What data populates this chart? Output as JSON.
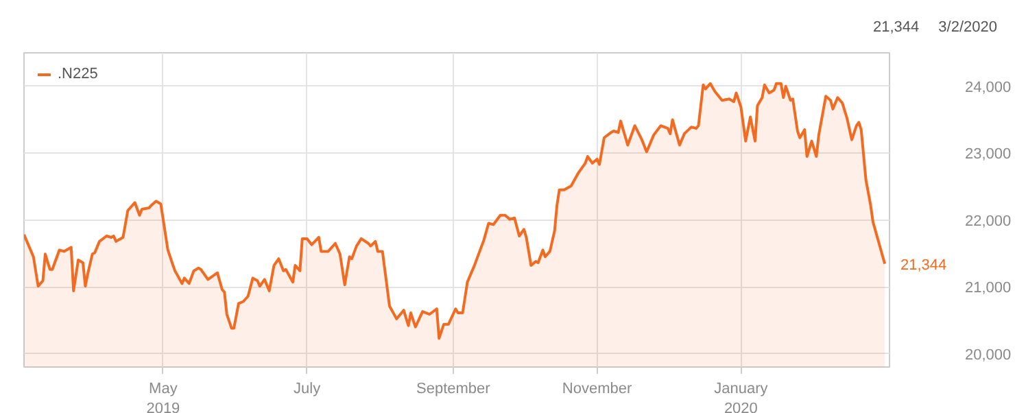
{
  "chart_data": {
    "type": "area",
    "x": [
      "2019-03-03",
      "2019-03-07",
      "2019-03-09",
      "2019-03-11",
      "2019-03-12",
      "2019-03-14",
      "2019-03-15",
      "2019-03-18",
      "2019-03-20",
      "2019-03-23",
      "2019-03-24",
      "2019-03-26",
      "2019-03-28",
      "2019-03-29",
      "2019-03-30",
      "2019-04-01",
      "2019-04-02",
      "2019-04-04",
      "2019-04-07",
      "2019-04-09",
      "2019-04-10",
      "2019-04-11",
      "2019-04-14",
      "2019-04-16",
      "2019-04-19",
      "2019-04-21",
      "2019-04-22",
      "2019-04-25",
      "2019-04-26",
      "2019-04-28",
      "2019-04-30",
      "2019-05-03",
      "2019-05-05",
      "2019-05-06",
      "2019-05-09",
      "2019-05-10",
      "2019-05-12",
      "2019-05-14",
      "2019-05-16",
      "2019-05-17",
      "2019-05-20",
      "2019-05-24",
      "2019-05-26",
      "2019-05-27",
      "2019-05-28",
      "2019-05-30",
      "2019-05-31",
      "2019-06-02",
      "2019-06-04",
      "2019-06-06",
      "2019-06-08",
      "2019-06-10",
      "2019-06-11",
      "2019-06-13",
      "2019-06-15",
      "2019-06-17",
      "2019-06-19",
      "2019-06-21",
      "2019-06-22",
      "2019-06-25",
      "2019-06-26",
      "2019-06-28",
      "2019-06-29",
      "2019-07-01",
      "2019-07-03",
      "2019-07-06",
      "2019-07-07",
      "2019-07-10",
      "2019-07-13",
      "2019-07-15",
      "2019-07-17",
      "2019-07-19",
      "2019-07-20",
      "2019-07-22",
      "2019-07-24",
      "2019-07-27",
      "2019-07-28",
      "2019-07-30",
      "2019-07-31",
      "2019-08-02",
      "2019-08-05",
      "2019-08-08",
      "2019-08-11",
      "2019-08-13",
      "2019-08-14",
      "2019-08-16",
      "2019-08-19",
      "2019-08-22",
      "2019-08-25",
      "2019-08-26",
      "2019-08-28",
      "2019-08-30",
      "2019-09-02",
      "2019-09-03",
      "2019-09-05",
      "2019-09-07",
      "2019-09-10",
      "2019-09-14",
      "2019-09-16",
      "2019-09-18",
      "2019-09-21",
      "2019-09-23",
      "2019-09-25",
      "2019-09-27",
      "2019-09-29",
      "2019-10-01",
      "2019-10-02",
      "2019-10-04",
      "2019-10-06",
      "2019-10-07",
      "2019-10-09",
      "2019-10-10",
      "2019-10-12",
      "2019-10-14",
      "2019-10-15",
      "2019-10-16",
      "2019-10-18",
      "2019-10-21",
      "2019-10-24",
      "2019-10-27",
      "2019-10-28",
      "2019-10-30",
      "2019-11-01",
      "2019-11-02",
      "2019-11-04",
      "2019-11-07",
      "2019-11-08",
      "2019-11-10",
      "2019-11-11",
      "2019-11-14",
      "2019-11-17",
      "2019-11-20",
      "2019-11-22",
      "2019-11-23",
      "2019-11-25",
      "2019-11-28",
      "2019-12-01",
      "2019-12-02",
      "2019-12-03",
      "2019-12-04",
      "2019-12-06",
      "2019-12-08",
      "2019-12-11",
      "2019-12-13",
      "2019-12-14",
      "2019-12-16",
      "2019-12-17",
      "2019-12-19",
      "2019-12-21",
      "2019-12-24",
      "2019-12-27",
      "2019-12-29",
      "2019-12-30",
      "2020-01-01",
      "2020-01-03",
      "2020-01-05",
      "2020-01-07",
      "2020-01-08",
      "2020-01-10",
      "2020-01-11",
      "2020-01-13",
      "2020-01-15",
      "2020-01-16",
      "2020-01-18",
      "2020-01-19",
      "2020-01-20",
      "2020-01-22",
      "2020-01-23",
      "2020-01-25",
      "2020-01-26",
      "2020-01-28",
      "2020-01-29",
      "2020-01-31",
      "2020-02-02",
      "2020-02-03",
      "2020-02-06",
      "2020-02-08",
      "2020-02-09",
      "2020-02-11",
      "2020-02-13",
      "2020-02-15",
      "2020-02-17",
      "2020-02-19",
      "2020-02-20",
      "2020-02-21",
      "2020-02-23",
      "2020-02-24",
      "2020-02-25",
      "2020-02-26",
      "2020-03-02"
    ],
    "series": [
      {
        "name": ".N225",
        "color": "#f26b21",
        "values": [
          21780,
          21450,
          21010,
          21090,
          21490,
          21260,
          21260,
          21550,
          21530,
          21590,
          20940,
          21400,
          21360,
          21010,
          21190,
          21490,
          21510,
          21680,
          21760,
          21740,
          21760,
          21680,
          21740,
          22140,
          22260,
          22070,
          22160,
          22180,
          22220,
          22280,
          22240,
          21550,
          21340,
          21240,
          21050,
          21130,
          21050,
          21240,
          21280,
          21260,
          21110,
          21210,
          20960,
          20920,
          20590,
          20380,
          20380,
          20750,
          20780,
          20860,
          21130,
          21090,
          21010,
          21110,
          20940,
          21320,
          21420,
          21240,
          21260,
          21070,
          21320,
          21240,
          21720,
          21720,
          21630,
          21740,
          21530,
          21530,
          21650,
          21490,
          21030,
          21450,
          21420,
          21610,
          21720,
          21650,
          21610,
          21680,
          21530,
          21530,
          20710,
          20520,
          20650,
          20420,
          20610,
          20400,
          20630,
          20590,
          20670,
          20230,
          20440,
          20440,
          20670,
          20610,
          20610,
          21070,
          21320,
          21700,
          21950,
          21930,
          22070,
          22070,
          22010,
          22030,
          21760,
          21860,
          21740,
          21320,
          21380,
          21360,
          21550,
          21450,
          21530,
          21840,
          22220,
          22450,
          22450,
          22510,
          22700,
          22850,
          22950,
          22850,
          22910,
          22830,
          23230,
          23310,
          23330,
          23310,
          23480,
          23120,
          23410,
          23200,
          23020,
          23100,
          23270,
          23410,
          23370,
          23290,
          23500,
          23370,
          23120,
          23290,
          23390,
          23370,
          23410,
          24020,
          23960,
          24040,
          23920,
          23790,
          23810,
          23770,
          23900,
          23690,
          23180,
          23540,
          23180,
          23710,
          23830,
          24020,
          23900,
          23940,
          24040,
          24040,
          23830,
          24000,
          23790,
          23810,
          23330,
          23230,
          23350,
          22950,
          23180,
          22950,
          23270,
          23850,
          23790,
          23660,
          23830,
          23750,
          23520,
          23200,
          23410,
          23460,
          23350,
          22600,
          22410,
          22220,
          21970,
          21344
        ]
      }
    ],
    "xlim": [
      "2019-03-03",
      "2020-03-04"
    ],
    "xticks": [
      {
        "value": "2019-05-01",
        "label": "May\n2019"
      },
      {
        "value": "2019-07-01",
        "label": "July"
      },
      {
        "value": "2019-09-01",
        "label": "September"
      },
      {
        "value": "2019-11-01",
        "label": "November"
      },
      {
        "value": "2020-01-01",
        "label": "January\n2020"
      }
    ],
    "ylim": [
      19800,
      24500
    ],
    "yticks": [
      {
        "value": 20000,
        "label": "20,000"
      },
      {
        "value": 21000,
        "label": "21,000"
      },
      {
        "value": 22000,
        "label": "22,000"
      },
      {
        "value": 23000,
        "label": "23,000"
      },
      {
        "value": 24000,
        "label": "24,000"
      }
    ],
    "annotations": [
      "21,344",
      "3/2/2020",
      "21,344"
    ],
    "grid": true,
    "legend": "top left"
  }
}
